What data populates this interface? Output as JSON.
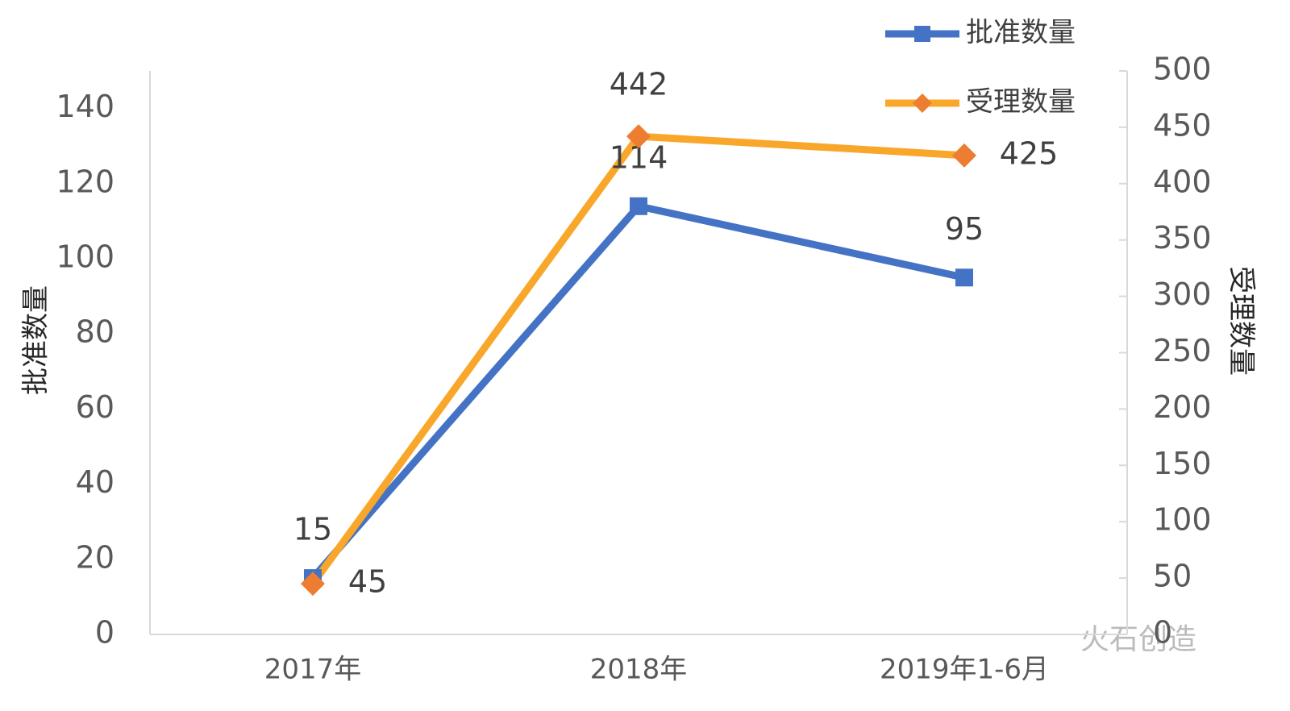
{
  "chart_data": {
    "type": "line",
    "categories": [
      "2017年",
      "2018年",
      "2019年1-6月"
    ],
    "y_label": "批准数量",
    "y2_label": "受理数量",
    "ylim": [
      0,
      150
    ],
    "yticks": [
      0,
      20,
      40,
      60,
      80,
      100,
      120,
      140
    ],
    "y2lim": [
      0,
      500
    ],
    "y2ticks": [
      0,
      50,
      100,
      150,
      200,
      250,
      300,
      350,
      400,
      450,
      500
    ],
    "legend": "top-right",
    "grid": false,
    "watermark": "火石创造",
    "series": [
      {
        "name": "批准数量",
        "color": "#4472c4",
        "marker_color": "#4472c4",
        "marker": "square",
        "values": [
          15,
          114,
          95
        ]
      },
      {
        "name": "受理数量",
        "color": "#f9a72b",
        "marker_color": "#ed7d31",
        "marker": "diamond",
        "axis": "y2",
        "values": [
          45,
          442,
          425
        ]
      }
    ]
  }
}
